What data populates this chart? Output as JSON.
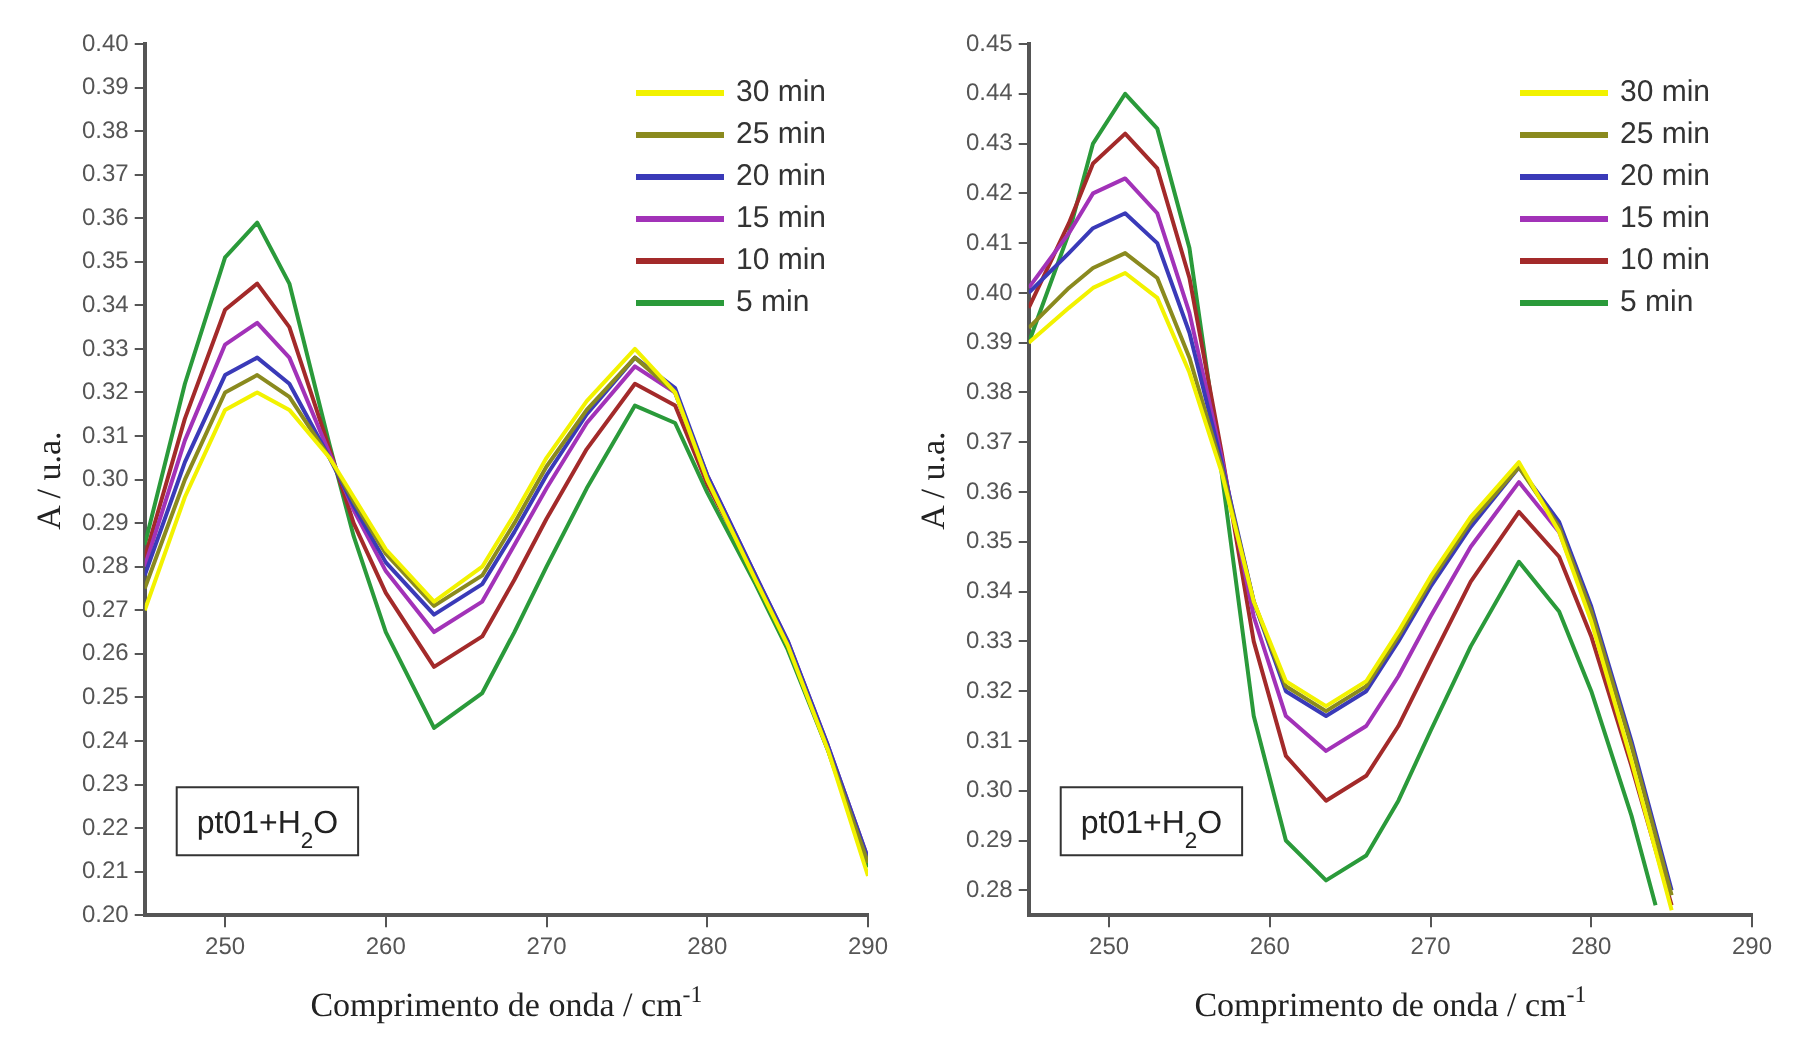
{
  "chart_data": [
    {
      "type": "line",
      "xlabel": "Comprimento de onda / cm$^{-1}$",
      "ylabel": "A / u.a.",
      "xlim": [
        245,
        290
      ],
      "xticks": [
        250,
        260,
        270,
        280,
        290
      ],
      "ylim": [
        0.2,
        0.4
      ],
      "yticks": [
        {
          "value": 0.2,
          "label": "0.20"
        },
        0.21,
        0.22,
        0.23,
        0.24,
        0.25,
        0.26,
        0.27,
        0.28,
        0.29,
        {
          "value": 0.3,
          "label": "0.30"
        },
        0.31,
        0.32,
        0.33,
        0.34,
        0.35,
        0.36,
        0.37,
        0.38,
        0.39,
        {
          "value": 0.4,
          "label": "0.40"
        }
      ],
      "legend": "top right",
      "annotations": [
        "pt01+H$_{2}$O"
      ],
      "series": [
        {
          "name": "30 min",
          "color": "#f2f200",
          "x": [
            245,
            247.5,
            250,
            252,
            254,
            256.5,
            258,
            260,
            263,
            266,
            268,
            270,
            272.5,
            275.5,
            278,
            280,
            283,
            285,
            287.5,
            290
          ],
          "values": [
            0.27,
            0.296,
            0.316,
            0.32,
            0.316,
            0.305,
            0.296,
            0.284,
            0.272,
            0.28,
            0.292,
            0.305,
            0.318,
            0.33,
            0.32,
            0.3,
            0.277,
            0.262,
            0.238,
            0.209
          ]
        },
        {
          "name": "25 min",
          "color": "#8a8a1e",
          "x": [
            245,
            247.5,
            250,
            252,
            254,
            256.5,
            258,
            260,
            263,
            266,
            268,
            270,
            272.5,
            275.5,
            278,
            280,
            283,
            285,
            287.5,
            290
          ],
          "values": [
            0.275,
            0.3,
            0.32,
            0.324,
            0.319,
            0.305,
            0.295,
            0.283,
            0.271,
            0.278,
            0.29,
            0.303,
            0.316,
            0.328,
            0.32,
            0.3,
            0.277,
            0.262,
            0.238,
            0.212
          ]
        },
        {
          "name": "20 min",
          "color": "#3a3ab8",
          "x": [
            245,
            247.5,
            250,
            252,
            254,
            256.5,
            258,
            260,
            263,
            266,
            268,
            270,
            272.5,
            275.5,
            278,
            280,
            283,
            285,
            287.5,
            290
          ],
          "values": [
            0.278,
            0.304,
            0.324,
            0.328,
            0.322,
            0.305,
            0.294,
            0.281,
            0.269,
            0.276,
            0.288,
            0.301,
            0.315,
            0.328,
            0.321,
            0.301,
            0.278,
            0.263,
            0.239,
            0.213
          ]
        },
        {
          "name": "15 min",
          "color": "#a232b8",
          "x": [
            245,
            247.5,
            250,
            252,
            254,
            256.5,
            258,
            260,
            263,
            266,
            268,
            270,
            272.5,
            275.5,
            278,
            280,
            283,
            285,
            287.5,
            290
          ],
          "values": [
            0.28,
            0.309,
            0.331,
            0.336,
            0.328,
            0.306,
            0.293,
            0.279,
            0.265,
            0.272,
            0.285,
            0.298,
            0.313,
            0.326,
            0.32,
            0.301,
            0.278,
            0.263,
            0.239,
            0.213
          ]
        },
        {
          "name": "10 min",
          "color": "#a32a2a",
          "x": [
            245,
            247.5,
            250,
            252,
            254,
            256.5,
            258,
            260,
            263,
            266,
            268,
            270,
            272.5,
            275.5,
            278,
            280,
            283
          ],
          "values": [
            0.282,
            0.314,
            0.339,
            0.345,
            0.335,
            0.307,
            0.29,
            0.274,
            0.257,
            0.264,
            0.277,
            0.291,
            0.307,
            0.322,
            0.317,
            0.299,
            0.278
          ]
        },
        {
          "name": "5 min",
          "color": "#2a9a3a",
          "x": [
            245,
            247.5,
            250,
            252,
            254,
            256.5,
            258,
            260,
            263,
            266,
            268,
            270,
            272.5,
            275.5,
            278,
            280,
            283,
            285,
            287.5,
            290
          ],
          "values": [
            0.285,
            0.322,
            0.351,
            0.359,
            0.345,
            0.308,
            0.287,
            0.265,
            0.243,
            0.251,
            0.265,
            0.28,
            0.298,
            0.317,
            0.313,
            0.297,
            0.276,
            0.261,
            0.238,
            0.211
          ]
        }
      ]
    },
    {
      "type": "line",
      "xlabel": "Comprimento de onda / cm$^{-1}$",
      "ylabel": "A / u.a.",
      "xlim": [
        245,
        290
      ],
      "xticks": [
        250,
        260,
        270,
        280,
        290
      ],
      "ylim": [
        0.275,
        0.45
      ],
      "yticks": [
        0.28,
        0.29,
        {
          "value": 0.3,
          "label": "0.30"
        },
        0.31,
        0.32,
        0.33,
        0.34,
        0.35,
        0.36,
        0.37,
        0.38,
        0.39,
        {
          "value": 0.4,
          "label": "0.40"
        },
        0.41,
        0.42,
        0.43,
        0.44,
        0.45
      ],
      "legend": "top right",
      "annotations": [
        "pt01+H$_{2}$O"
      ],
      "series": [
        {
          "name": "30 min",
          "color": "#f2f200",
          "x": [
            245,
            247.5,
            249,
            251,
            253,
            255,
            257,
            259,
            261,
            263.5,
            266,
            268,
            270,
            272.5,
            275.5,
            278,
            280,
            282.5,
            285
          ],
          "values": [
            0.39,
            0.397,
            0.401,
            0.404,
            0.399,
            0.384,
            0.364,
            0.338,
            0.322,
            0.317,
            0.322,
            0.332,
            0.343,
            0.355,
            0.366,
            0.352,
            0.334,
            0.306,
            0.276
          ]
        },
        {
          "name": "25 min",
          "color": "#8a8a1e",
          "x": [
            245,
            247.5,
            249,
            251,
            253,
            255,
            257,
            259,
            261,
            263.5,
            266,
            268,
            270,
            272.5,
            275.5,
            278,
            280,
            282.5,
            285
          ],
          "values": [
            0.393,
            0.401,
            0.405,
            0.408,
            0.403,
            0.387,
            0.365,
            0.338,
            0.321,
            0.316,
            0.321,
            0.331,
            0.342,
            0.354,
            0.365,
            0.353,
            0.336,
            0.309,
            0.279
          ]
        },
        {
          "name": "20 min",
          "color": "#3a3ab8",
          "x": [
            245,
            247.5,
            249,
            251,
            253,
            255,
            257,
            259,
            261,
            263.5,
            266,
            268,
            270,
            272.5,
            275.5,
            278,
            280,
            282.5,
            285
          ],
          "values": [
            0.4,
            0.408,
            0.413,
            0.416,
            0.41,
            0.392,
            0.366,
            0.338,
            0.32,
            0.315,
            0.32,
            0.33,
            0.341,
            0.353,
            0.365,
            0.354,
            0.337,
            0.31,
            0.28
          ]
        },
        {
          "name": "15 min",
          "color": "#a232b8",
          "x": [
            245,
            247.5,
            249,
            251,
            253,
            255,
            257,
            259,
            261,
            263.5,
            266,
            268,
            270,
            272.5,
            275.5,
            278,
            280
          ],
          "values": [
            0.401,
            0.412,
            0.42,
            0.423,
            0.416,
            0.396,
            0.367,
            0.335,
            0.315,
            0.308,
            0.313,
            0.323,
            0.335,
            0.349,
            0.362,
            0.352,
            0.335
          ]
        },
        {
          "name": "10 min",
          "color": "#a32a2a",
          "x": [
            245,
            247.5,
            249,
            251,
            253,
            255,
            257,
            259,
            261,
            263.5,
            266,
            268,
            270,
            272.5,
            275.5,
            278,
            280,
            282.5,
            285
          ],
          "values": [
            0.397,
            0.414,
            0.426,
            0.432,
            0.425,
            0.403,
            0.368,
            0.33,
            0.307,
            0.298,
            0.303,
            0.313,
            0.326,
            0.342,
            0.356,
            0.347,
            0.331,
            0.305,
            0.277
          ]
        },
        {
          "name": "5 min",
          "color": "#2a9a3a",
          "x": [
            245,
            247.5,
            249,
            251,
            253,
            255,
            257,
            259,
            261,
            263.5,
            266,
            268,
            270,
            272.5,
            275.5,
            278,
            280,
            282.5,
            284
          ],
          "values": [
            0.39,
            0.412,
            0.43,
            0.44,
            0.433,
            0.409,
            0.364,
            0.315,
            0.29,
            0.282,
            0.287,
            0.298,
            0.312,
            0.329,
            0.346,
            0.336,
            0.32,
            0.295,
            0.277
          ]
        }
      ]
    }
  ]
}
